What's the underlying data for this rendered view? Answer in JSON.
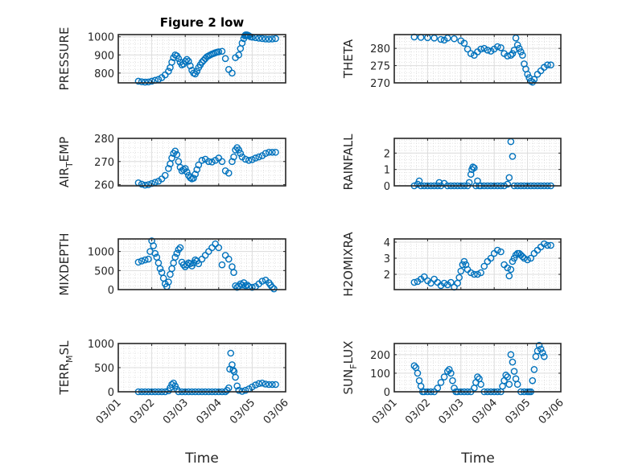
{
  "figure": {
    "title": "Figure 2 low",
    "xlabel": "Time",
    "marker_color": "#0072BD",
    "x_tick_labels": [
      "03/01",
      "03/02",
      "03/03",
      "03/04",
      "03/05",
      "03/06"
    ]
  },
  "chart_data": [
    {
      "type": "scatter",
      "name": "pressure",
      "ylabel": "PRESSURE",
      "ylabel_sub": "",
      "title": "Figure 2 low",
      "xlabel": "",
      "xlim": [
        0,
        5
      ],
      "ylim": [
        746,
        1012
      ],
      "yticks": [
        800,
        900,
        1000
      ],
      "grid": true,
      "x": [
        0.6,
        0.7,
        0.8,
        0.9,
        1.0,
        1.1,
        1.2,
        1.3,
        1.4,
        1.5,
        1.55,
        1.6,
        1.65,
        1.7,
        1.75,
        1.8,
        1.85,
        1.9,
        1.95,
        2.0,
        2.05,
        2.1,
        2.15,
        2.2,
        2.25,
        2.3,
        2.35,
        2.4,
        2.45,
        2.5,
        2.55,
        2.6,
        2.65,
        2.7,
        2.75,
        2.8,
        2.85,
        2.9,
        2.95,
        3.0,
        3.1,
        3.2,
        3.3,
        3.4,
        3.5,
        3.6,
        3.65,
        3.7,
        3.75,
        3.78,
        3.8,
        3.82,
        3.85,
        3.88,
        3.9,
        3.95,
        4.0,
        4.1,
        4.2,
        4.3,
        4.4,
        4.5,
        4.6,
        4.7
      ],
      "y": [
        755,
        752,
        750,
        751,
        755,
        760,
        765,
        775,
        790,
        810,
        830,
        860,
        885,
        900,
        895,
        880,
        860,
        845,
        850,
        865,
        875,
        865,
        840,
        815,
        800,
        795,
        810,
        830,
        845,
        860,
        870,
        880,
        890,
        895,
        900,
        905,
        908,
        912,
        915,
        917,
        920,
        880,
        820,
        800,
        885,
        900,
        935,
        965,
        990,
        1005,
        1010,
        1010,
        1010,
        1008,
        1005,
        1000,
        998,
        995,
        992,
        990,
        988,
        987,
        988,
        990
      ]
    },
    {
      "type": "scatter",
      "name": "theta",
      "ylabel": "THETA",
      "ylabel_sub": "",
      "xlim": [
        0,
        5
      ],
      "ylim": [
        270,
        284
      ],
      "yticks": [
        270,
        275,
        280
      ],
      "grid": true,
      "x": [
        0.6,
        0.8,
        1.0,
        1.2,
        1.4,
        1.5,
        1.6,
        1.8,
        2.0,
        2.1,
        2.2,
        2.3,
        2.4,
        2.5,
        2.6,
        2.7,
        2.8,
        2.9,
        3.0,
        3.1,
        3.2,
        3.3,
        3.4,
        3.5,
        3.55,
        3.6,
        3.65,
        3.7,
        3.75,
        3.8,
        3.85,
        3.9,
        3.95,
        4.0,
        4.05,
        4.1,
        4.15,
        4.2,
        4.3,
        4.4,
        4.5,
        4.6,
        4.7
      ],
      "y": [
        283.3,
        283.2,
        283.1,
        283.0,
        282.6,
        282.4,
        283.0,
        282.8,
        282.2,
        281.5,
        279.8,
        278.5,
        278.0,
        279.0,
        279.8,
        280.0,
        279.5,
        279.2,
        279.8,
        280.5,
        280.2,
        278.5,
        277.8,
        278.0,
        278.5,
        279.5,
        283.0,
        281.0,
        280.0,
        279.0,
        278.0,
        275.5,
        274.0,
        272.5,
        271.5,
        270.5,
        270.2,
        271.0,
        272.5,
        273.5,
        274.5,
        275.2,
        275.2
      ]
    },
    {
      "type": "scatter",
      "name": "air_temp",
      "ylabel": "AIR",
      "ylabel_sub": "T",
      "ylabel_rest": "EMP",
      "xlim": [
        0,
        5
      ],
      "ylim": [
        259.5,
        280
      ],
      "yticks": [
        260,
        270,
        280
      ],
      "grid": true,
      "x": [
        0.6,
        0.7,
        0.8,
        0.9,
        1.0,
        1.1,
        1.2,
        1.3,
        1.4,
        1.5,
        1.55,
        1.6,
        1.65,
        1.7,
        1.75,
        1.8,
        1.85,
        1.9,
        1.95,
        2.0,
        2.05,
        2.1,
        2.15,
        2.2,
        2.25,
        2.3,
        2.35,
        2.4,
        2.5,
        2.6,
        2.7,
        2.8,
        2.9,
        3.0,
        3.1,
        3.2,
        3.3,
        3.4,
        3.45,
        3.5,
        3.55,
        3.6,
        3.65,
        3.7,
        3.8,
        3.9,
        4.0,
        4.1,
        4.2,
        4.3,
        4.4,
        4.5,
        4.6,
        4.7
      ],
      "y": [
        260.8,
        260.2,
        259.8,
        260.0,
        260.5,
        261.0,
        261.5,
        262.5,
        264.0,
        267.0,
        269.0,
        271.5,
        273.5,
        274.5,
        273.0,
        270.0,
        267.5,
        266.0,
        266.5,
        267.0,
        265.5,
        264.0,
        263.0,
        262.5,
        262.8,
        264.5,
        266.5,
        268.5,
        270.5,
        271.0,
        270.0,
        269.8,
        270.5,
        271.5,
        270.0,
        266.0,
        265.0,
        270.0,
        272.0,
        275.0,
        276.0,
        275.0,
        273.5,
        272.0,
        271.0,
        270.5,
        270.8,
        271.5,
        272.0,
        272.5,
        273.5,
        274.0,
        274.0,
        274.0
      ]
    },
    {
      "type": "scatter",
      "name": "rainfall",
      "ylabel": "RAINFALL",
      "ylabel_sub": "",
      "xlim": [
        0,
        5
      ],
      "ylim": [
        0,
        2.9
      ],
      "yticks": [
        0,
        1,
        2
      ],
      "grid": true,
      "x": [
        0.6,
        0.7,
        0.75,
        0.8,
        0.9,
        1.0,
        1.1,
        1.2,
        1.3,
        1.35,
        1.4,
        1.5,
        1.6,
        1.7,
        1.8,
        1.9,
        2.0,
        2.1,
        2.2,
        2.25,
        2.3,
        2.33,
        2.36,
        2.4,
        2.45,
        2.5,
        2.55,
        2.6,
        2.7,
        2.8,
        2.9,
        3.0,
        3.1,
        3.2,
        3.3,
        3.4,
        3.45,
        3.5,
        3.55,
        3.6,
        3.7,
        3.8,
        3.9,
        4.0,
        4.1,
        4.2,
        4.3,
        4.4,
        4.5,
        4.6,
        4.7
      ],
      "y": [
        0,
        0.1,
        0.3,
        0,
        0,
        0,
        0,
        0,
        0,
        0.2,
        0,
        0.15,
        0,
        0,
        0,
        0,
        0,
        0,
        0,
        0.2,
        0.7,
        1.0,
        1.15,
        1.1,
        0,
        0.3,
        0,
        0,
        0,
        0,
        0,
        0,
        0,
        0,
        0,
        0.1,
        0.5,
        2.7,
        1.8,
        0,
        0,
        0,
        0,
        0,
        0,
        0,
        0,
        0,
        0,
        0,
        0
      ]
    },
    {
      "type": "scatter",
      "name": "mixdepth",
      "ylabel": "MIXDEPTH",
      "ylabel_sub": "",
      "xlim": [
        0,
        5
      ],
      "ylim": [
        0,
        1330
      ],
      "yticks": [
        0,
        500,
        1000
      ],
      "grid": true,
      "x": [
        0.6,
        0.7,
        0.8,
        0.9,
        0.95,
        1.0,
        1.05,
        1.1,
        1.15,
        1.2,
        1.25,
        1.3,
        1.35,
        1.4,
        1.45,
        1.5,
        1.55,
        1.6,
        1.65,
        1.7,
        1.75,
        1.8,
        1.85,
        1.9,
        1.95,
        2.0,
        2.05,
        2.1,
        2.15,
        2.2,
        2.25,
        2.3,
        2.35,
        2.4,
        2.5,
        2.6,
        2.7,
        2.8,
        2.9,
        3.0,
        3.1,
        3.2,
        3.3,
        3.4,
        3.45,
        3.5,
        3.55,
        3.6,
        3.65,
        3.7,
        3.75,
        3.8,
        3.85,
        3.9,
        4.0,
        4.1,
        4.2,
        4.3,
        4.4,
        4.5,
        4.55,
        4.6,
        4.65
      ],
      "y": [
        720,
        750,
        780,
        800,
        1000,
        1280,
        1150,
        950,
        850,
        700,
        550,
        450,
        300,
        150,
        80,
        200,
        400,
        550,
        700,
        850,
        950,
        1050,
        1100,
        720,
        650,
        600,
        650,
        700,
        680,
        620,
        700,
        780,
        750,
        680,
        800,
        900,
        1000,
        1100,
        1200,
        1100,
        650,
        900,
        800,
        600,
        450,
        100,
        60,
        90,
        150,
        120,
        180,
        100,
        120,
        80,
        60,
        80,
        150,
        220,
        250,
        180,
        120,
        60,
        20
      ]
    },
    {
      "type": "scatter",
      "name": "h2omixra",
      "ylabel": "H2OMIXRA",
      "ylabel_sub": "",
      "xlim": [
        0,
        5
      ],
      "ylim": [
        1.05,
        4.2
      ],
      "yticks": [
        2,
        3,
        4
      ],
      "grid": true,
      "x": [
        0.6,
        0.7,
        0.8,
        0.9,
        1.0,
        1.1,
        1.2,
        1.3,
        1.4,
        1.5,
        1.6,
        1.7,
        1.8,
        1.9,
        1.95,
        2.0,
        2.05,
        2.1,
        2.15,
        2.2,
        2.3,
        2.4,
        2.5,
        2.6,
        2.7,
        2.8,
        2.9,
        3.0,
        3.1,
        3.2,
        3.3,
        3.4,
        3.45,
        3.5,
        3.55,
        3.6,
        3.65,
        3.7,
        3.75,
        3.8,
        3.85,
        3.9,
        4.0,
        4.1,
        4.2,
        4.3,
        4.4,
        4.5,
        4.6,
        4.7
      ],
      "y": [
        1.5,
        1.55,
        1.7,
        1.85,
        1.6,
        1.45,
        1.7,
        1.5,
        1.3,
        1.45,
        1.35,
        1.5,
        1.2,
        1.45,
        1.8,
        2.2,
        2.6,
        2.8,
        2.6,
        2.3,
        2.1,
        2.0,
        2.0,
        2.1,
        2.5,
        2.8,
        3.0,
        3.3,
        3.5,
        3.4,
        2.6,
        2.4,
        1.9,
        2.3,
        2.8,
        3.0,
        3.2,
        3.3,
        3.3,
        3.2,
        3.1,
        3.0,
        2.9,
        3.0,
        3.3,
        3.5,
        3.7,
        3.9,
        3.8,
        3.8
      ]
    },
    {
      "type": "scatter",
      "name": "terr_msl",
      "ylabel": "TERR",
      "ylabel_sub": "M",
      "ylabel_rest": "SL",
      "xlim": [
        0,
        5
      ],
      "ylim": [
        0,
        1000
      ],
      "yticks": [
        0,
        500,
        1000
      ],
      "grid": true,
      "x": [
        0.6,
        0.7,
        0.8,
        0.9,
        1.0,
        1.1,
        1.2,
        1.3,
        1.4,
        1.5,
        1.55,
        1.6,
        1.65,
        1.7,
        1.75,
        1.8,
        1.9,
        2.0,
        2.1,
        2.2,
        2.3,
        2.4,
        2.5,
        2.6,
        2.7,
        2.8,
        2.9,
        3.0,
        3.1,
        3.2,
        3.25,
        3.3,
        3.33,
        3.36,
        3.4,
        3.43,
        3.46,
        3.5,
        3.55,
        3.6,
        3.7,
        3.8,
        3.9,
        4.0,
        4.1,
        4.2,
        4.3,
        4.4,
        4.5,
        4.6,
        4.7
      ],
      "y": [
        0,
        0,
        0,
        0,
        0,
        0,
        0,
        0,
        0,
        20,
        80,
        150,
        180,
        120,
        50,
        0,
        0,
        0,
        0,
        0,
        0,
        0,
        0,
        0,
        0,
        0,
        0,
        0,
        0,
        0,
        30,
        80,
        470,
        800,
        560,
        450,
        420,
        300,
        120,
        30,
        10,
        30,
        60,
        100,
        140,
        170,
        180,
        160,
        150,
        150,
        150
      ]
    },
    {
      "type": "scatter",
      "name": "sun_flux",
      "ylabel": "SUN",
      "ylabel_sub": "F",
      "ylabel_rest": "LUX",
      "xlim": [
        0,
        5
      ],
      "ylim": [
        0,
        260
      ],
      "yticks": [
        0,
        100,
        200
      ],
      "grid": true,
      "x": [
        0.6,
        0.65,
        0.7,
        0.75,
        0.8,
        0.85,
        0.9,
        1.0,
        1.1,
        1.2,
        1.3,
        1.4,
        1.5,
        1.6,
        1.65,
        1.7,
        1.75,
        1.8,
        1.85,
        1.9,
        2.0,
        2.1,
        2.2,
        2.3,
        2.4,
        2.45,
        2.5,
        2.55,
        2.6,
        2.7,
        2.8,
        2.9,
        3.0,
        3.1,
        3.2,
        3.25,
        3.3,
        3.35,
        3.4,
        3.45,
        3.5,
        3.55,
        3.6,
        3.65,
        3.7,
        3.8,
        3.9,
        4.0,
        4.05,
        4.1,
        4.15,
        4.2,
        4.25,
        4.3,
        4.35,
        4.4,
        4.45,
        4.5
      ],
      "y": [
        140,
        130,
        100,
        60,
        30,
        0,
        0,
        0,
        0,
        0,
        20,
        50,
        80,
        110,
        120,
        100,
        60,
        20,
        0,
        0,
        0,
        0,
        0,
        0,
        20,
        50,
        80,
        70,
        40,
        0,
        0,
        0,
        0,
        0,
        0,
        30,
        60,
        90,
        80,
        40,
        200,
        160,
        110,
        70,
        40,
        0,
        0,
        0,
        0,
        0,
        60,
        120,
        190,
        220,
        250,
        230,
        210,
        190
      ]
    }
  ]
}
